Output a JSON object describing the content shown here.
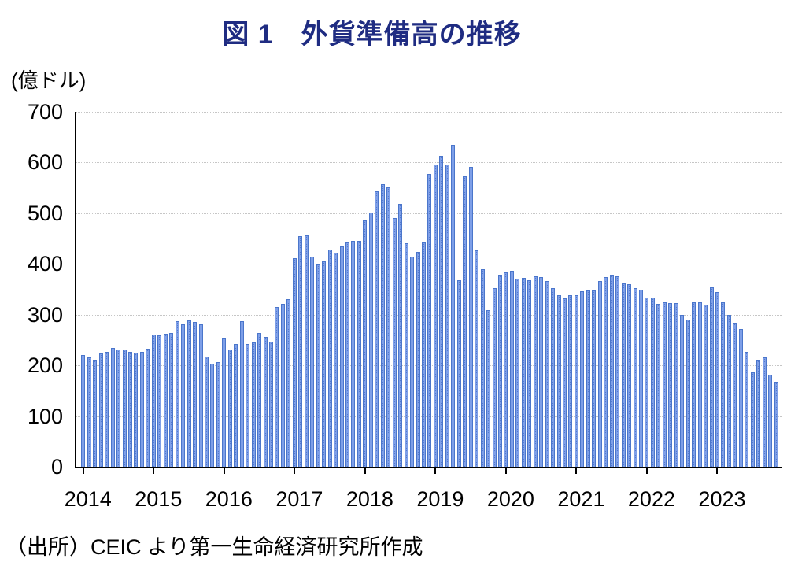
{
  "source_note": "（出所）CEIC より第一生命経済研究所作成",
  "chart_data": {
    "type": "bar",
    "title": "図 1　外貨準備高の推移",
    "unit": "(億ドル)",
    "series_name": "外貨準備高",
    "frequency": "monthly",
    "start_month": "2014-01",
    "end_month": "2023-11",
    "ylim": [
      0,
      700
    ],
    "yticks": [
      0,
      100,
      200,
      300,
      400,
      500,
      600,
      700
    ],
    "years": [
      "2014",
      "2015",
      "2016",
      "2017",
      "2018",
      "2019",
      "2020",
      "2021",
      "2022",
      "2023"
    ],
    "grid": "horizontal-dotted",
    "bar_color": "#7e9fe8",
    "bar_border_color": "#4b76cb",
    "title_color": "#1f2c82",
    "values": [
      220,
      216,
      211,
      223,
      227,
      234,
      232,
      231,
      227,
      225,
      227,
      233,
      261,
      259,
      262,
      264,
      287,
      281,
      288,
      285,
      281,
      218,
      204,
      207,
      253,
      231,
      242,
      287,
      242,
      245,
      264,
      256,
      247,
      315,
      322,
      331,
      412,
      455,
      457,
      415,
      399,
      405,
      428,
      422,
      435,
      443,
      445,
      446,
      486,
      501,
      544,
      558,
      551,
      490,
      519,
      441,
      414,
      423,
      442,
      578,
      596,
      613,
      596,
      635,
      368,
      573,
      592,
      427,
      389,
      309,
      352,
      379,
      384,
      387,
      371,
      372,
      368,
      376,
      374,
      367,
      353,
      339,
      332,
      339,
      339,
      346,
      348,
      347,
      367,
      374,
      379,
      376,
      361,
      360,
      352,
      350,
      333,
      334,
      321,
      324,
      323,
      323,
      300,
      291,
      324,
      324,
      319,
      354,
      344,
      324,
      300,
      284,
      272,
      227,
      186,
      211,
      215,
      181,
      168
    ]
  }
}
